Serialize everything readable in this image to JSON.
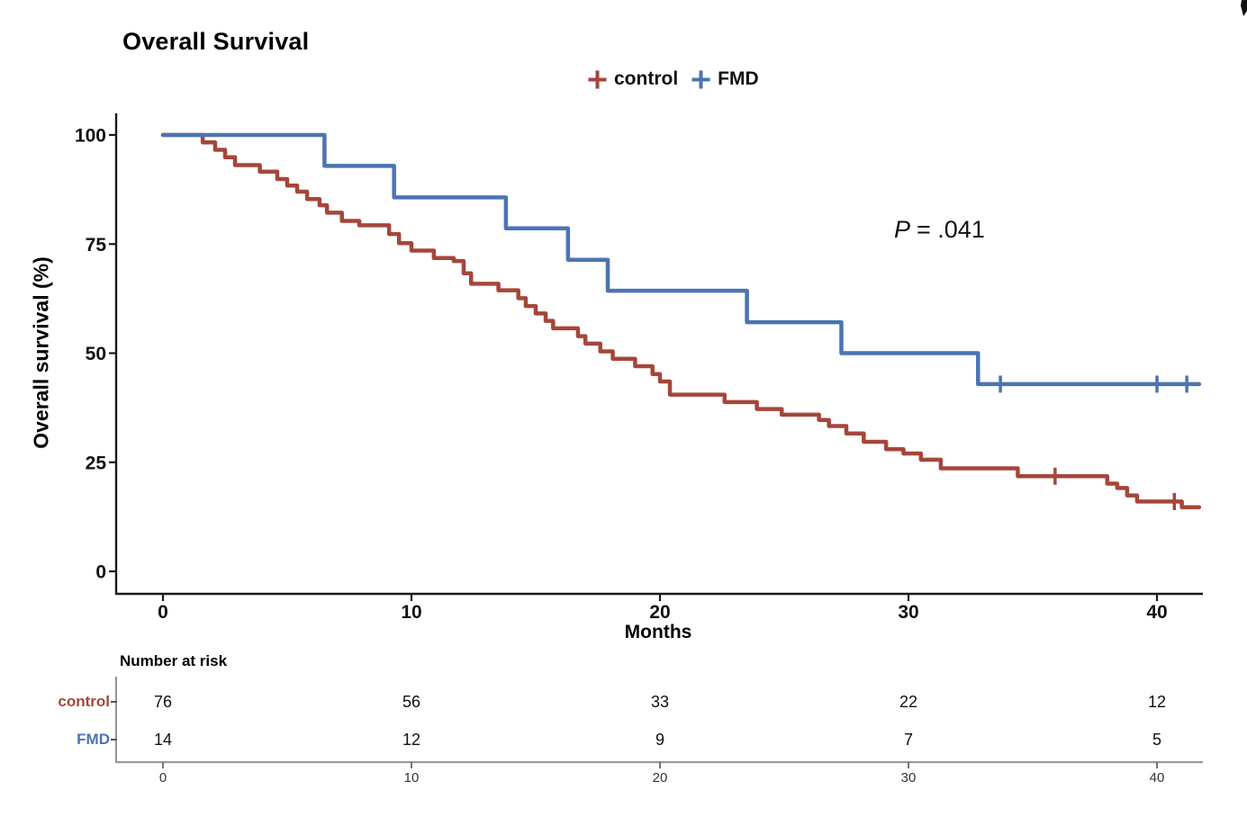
{
  "header": {
    "title": "Overall Survival"
  },
  "chart_data": {
    "type": "line",
    "subtype": "kaplan-meier-step",
    "title": "Overall Survival",
    "xlabel": "Months",
    "ylabel": "Overall survival (%)",
    "xlim": [
      0,
      41.7
    ],
    "ylim": [
      0,
      100
    ],
    "x_ticks": [
      0,
      10,
      20,
      30,
      40
    ],
    "y_ticks": [
      100,
      75,
      50,
      25,
      0
    ],
    "grid": false,
    "legend_position": "top-center",
    "annotation_variable": "P",
    "annotation_value": "= .041",
    "series": [
      {
        "name": "control",
        "color": "#A5463B",
        "end_time": 41.7,
        "points": [
          [
            0,
            100
          ],
          [
            1.6,
            98.3
          ],
          [
            2.1,
            96.6
          ],
          [
            2.5,
            94.9
          ],
          [
            2.9,
            93.1
          ],
          [
            3.9,
            91.6
          ],
          [
            4.6,
            89.9
          ],
          [
            5,
            88.4
          ],
          [
            5.4,
            87
          ],
          [
            5.8,
            85.3
          ],
          [
            6.3,
            83.9
          ],
          [
            6.6,
            82.2
          ],
          [
            7.2,
            80.3
          ],
          [
            7.9,
            79.3
          ],
          [
            9.1,
            77.3
          ],
          [
            9.5,
            75.2
          ],
          [
            10,
            73.5
          ],
          [
            10.9,
            71.8
          ],
          [
            11.7,
            71.1
          ],
          [
            12.1,
            68.3
          ],
          [
            12.4,
            65.9
          ],
          [
            13.5,
            64.4
          ],
          [
            14.3,
            62.6
          ],
          [
            14.6,
            60.8
          ],
          [
            15,
            59.1
          ],
          [
            15.4,
            57.4
          ],
          [
            15.7,
            55.7
          ],
          [
            16.7,
            53.9
          ],
          [
            17,
            52.2
          ],
          [
            17.6,
            50.4
          ],
          [
            18.1,
            48.7
          ],
          [
            19,
            47
          ],
          [
            19.7,
            45.2
          ],
          [
            20,
            43.5
          ],
          [
            20.4,
            40.5
          ],
          [
            22.6,
            38.8
          ],
          [
            23.9,
            37.2
          ],
          [
            24.9,
            35.9
          ],
          [
            26.4,
            34.7
          ],
          [
            26.8,
            33.3
          ],
          [
            27.5,
            31.6
          ],
          [
            28.2,
            29.7
          ],
          [
            29.1,
            28
          ],
          [
            29.8,
            27
          ],
          [
            30.5,
            25.6
          ],
          [
            31.3,
            23.6
          ],
          [
            34.4,
            21.8
          ],
          [
            38,
            20.1
          ],
          [
            38.4,
            19.1
          ],
          [
            38.8,
            17.4
          ],
          [
            39.2,
            16
          ],
          [
            41,
            14.7
          ]
        ],
        "censor_marks": [
          [
            35.9,
            21.8
          ],
          [
            40.7,
            16
          ]
        ]
      },
      {
        "name": "FMD",
        "color": "#4C74B2",
        "end_time": 41.7,
        "points": [
          [
            0,
            100
          ],
          [
            6.5,
            92.9
          ],
          [
            9.3,
            85.7
          ],
          [
            13.8,
            78.6
          ],
          [
            16.3,
            71.4
          ],
          [
            17.9,
            64.3
          ],
          [
            23.5,
            57.1
          ],
          [
            27.3,
            50
          ],
          [
            32.8,
            42.9
          ]
        ],
        "censor_marks": [
          [
            33.7,
            42.9
          ],
          [
            40,
            42.9
          ],
          [
            41.2,
            42.9
          ]
        ]
      }
    ]
  },
  "risk_table": {
    "title": "Number at risk",
    "axis_ticks": [
      0,
      10,
      20,
      30,
      40
    ],
    "rows": [
      {
        "label": "control",
        "color": "#A5463B",
        "values": [
          76,
          56,
          33,
          22,
          12
        ]
      },
      {
        "label": "FMD",
        "color": "#4C74B2",
        "values": [
          14,
          12,
          9,
          7,
          5
        ]
      }
    ]
  }
}
